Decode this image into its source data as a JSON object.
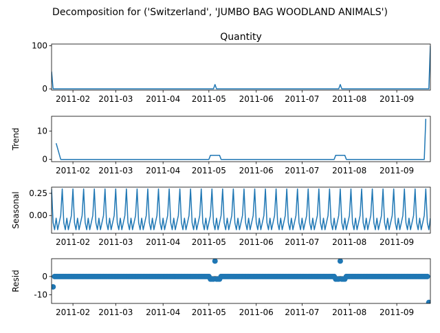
{
  "figure": {
    "suptitle": "Decomposition for ('Switzerland', 'JUMBO BAG WOODLAND ANIMALS')"
  },
  "colors": {
    "line": "#1f77b4",
    "marker": "#1f77b4",
    "axis": "#000000",
    "background": "#ffffff"
  },
  "chart_data": [
    {
      "type": "line",
      "title": "Quantity",
      "ylabel": "",
      "x_range": [
        "2011-01-18",
        "2011-09-23"
      ],
      "ylim": [
        -3,
        104
      ],
      "yticks": [
        0,
        100
      ],
      "xtick_labels": [
        "2011-02",
        "2011-03",
        "2011-04",
        "2011-05",
        "2011-06",
        "2011-07",
        "2011-08",
        "2011-09"
      ],
      "series": [
        {
          "points": [
            [
              "2011-01-18",
              40
            ],
            [
              "2011-01-19",
              0
            ],
            [
              "2011-05-04",
              0
            ],
            [
              "2011-05-05",
              10
            ],
            [
              "2011-05-06",
              0
            ],
            [
              "2011-07-25",
              0
            ],
            [
              "2011-07-26",
              10
            ],
            [
              "2011-07-27",
              0
            ],
            [
              "2011-09-22",
              0
            ],
            [
              "2011-09-23",
              100
            ]
          ]
        }
      ]
    },
    {
      "type": "line",
      "title": "",
      "ylabel": "Trend",
      "x_range": [
        "2011-01-18",
        "2011-09-23"
      ],
      "ylim": [
        -0.8,
        15.2
      ],
      "yticks": [
        0,
        10
      ],
      "xtick_labels": [
        "2011-02",
        "2011-03",
        "2011-04",
        "2011-05",
        "2011-06",
        "2011-07",
        "2011-08",
        "2011-09"
      ],
      "series": [
        {
          "points": [
            [
              "2011-01-21",
              5.7
            ],
            [
              "2011-01-24",
              0
            ],
            [
              "2011-05-01",
              0
            ],
            [
              "2011-05-02",
              1.43
            ],
            [
              "2011-05-08",
              1.43
            ],
            [
              "2011-05-09",
              0
            ],
            [
              "2011-07-22",
              0
            ],
            [
              "2011-07-23",
              1.43
            ],
            [
              "2011-07-29",
              1.43
            ],
            [
              "2011-07-30",
              0
            ],
            [
              "2011-09-19",
              0
            ],
            [
              "2011-09-20",
              14.3
            ]
          ]
        }
      ]
    },
    {
      "type": "line",
      "title": "",
      "ylabel": "Seasonal",
      "x_range": [
        "2011-01-18",
        "2011-09-23"
      ],
      "ylim": [
        -0.2,
        0.32
      ],
      "yticks": [
        -0.0,
        0.25
      ],
      "ytick_labels": [
        "0.00",
        "0.25"
      ],
      "xtick_labels": [
        "2011-02",
        "2011-03",
        "2011-04",
        "2011-05",
        "2011-06",
        "2011-07",
        "2011-08",
        "2011-09"
      ],
      "period_days": 7,
      "weekly_pattern": [
        0.3,
        -0.08,
        -0.16,
        -0.03,
        -0.16,
        -0.08,
        0.0
      ],
      "series": [
        {
          "start": "2011-01-18",
          "end": "2011-09-23",
          "pattern": "weekly_pattern"
        }
      ]
    },
    {
      "type": "scatter",
      "title": "",
      "ylabel": "Resid",
      "x_range": [
        "2011-01-18",
        "2011-09-23"
      ],
      "ylim": [
        -14.8,
        9.8
      ],
      "yticks": [
        0,
        -10
      ],
      "xtick_labels": [
        "2011-02",
        "2011-03",
        "2011-04",
        "2011-05",
        "2011-06",
        "2011-07",
        "2011-08",
        "2011-09"
      ],
      "baseline": 0,
      "default_value": 0,
      "start": "2011-01-19",
      "end": "2011-09-22",
      "special_points": [
        [
          "2011-01-19",
          -5.7
        ],
        [
          "2011-05-02",
          -1.43
        ],
        [
          "2011-05-03",
          -1.43
        ],
        [
          "2011-05-04",
          -1.43
        ],
        [
          "2011-05-05",
          8.5
        ],
        [
          "2011-05-06",
          -1.43
        ],
        [
          "2011-05-07",
          -1.43
        ],
        [
          "2011-05-08",
          -1.43
        ],
        [
          "2011-07-23",
          -1.43
        ],
        [
          "2011-07-24",
          -1.43
        ],
        [
          "2011-07-25",
          -1.43
        ],
        [
          "2011-07-26",
          8.5
        ],
        [
          "2011-07-27",
          -1.43
        ],
        [
          "2011-07-28",
          -1.43
        ],
        [
          "2011-07-29",
          -1.43
        ],
        [
          "2011-09-22",
          -14.3
        ]
      ]
    }
  ]
}
